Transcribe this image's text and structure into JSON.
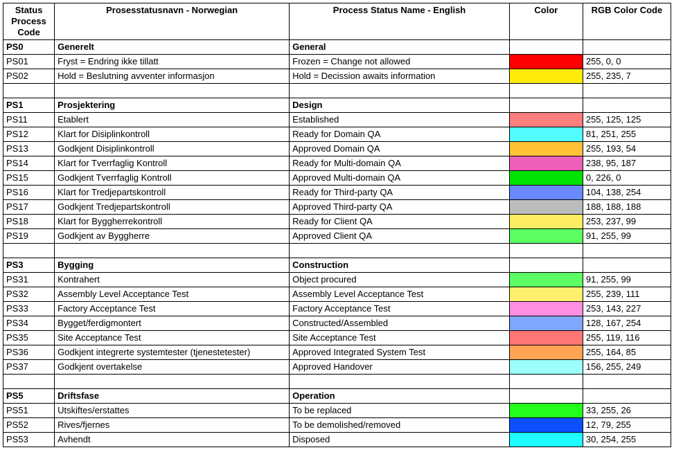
{
  "columns": [
    {
      "key": "code",
      "label": "Status Process Code"
    },
    {
      "key": "nor",
      "label": "Prosesstatusnavn - Norwegian"
    },
    {
      "key": "eng",
      "label": "Process Status Name  - English"
    },
    {
      "key": "color",
      "label": "Color"
    },
    {
      "key": "rgb",
      "label": "RGB Color Code"
    }
  ],
  "widths": {
    "code": 70,
    "nor": 320,
    "eng": 300,
    "color": 100,
    "rgb": 120
  },
  "font": {
    "family": "Arial",
    "size_pt": 10
  },
  "border_color": "#000000",
  "background_color": "#ffffff",
  "rows": [
    {
      "type": "section",
      "code": "PS0",
      "nor": "Generelt",
      "eng": "General"
    },
    {
      "type": "data",
      "code": "PS01",
      "nor": "Fryst = Endring ikke tillatt",
      "eng": "Frozen = Change not allowed",
      "color": "#ff0000",
      "rgb": "255, 0, 0"
    },
    {
      "type": "data",
      "code": "PS02",
      "nor": "Hold = Beslutning avventer informasjon",
      "eng": "Hold = Decission awaits information",
      "color": "#ffeb07",
      "rgb": "255, 235, 7"
    },
    {
      "type": "blank"
    },
    {
      "type": "section",
      "code": "PS1",
      "nor": "Prosjektering",
      "eng": "Design"
    },
    {
      "type": "data",
      "code": "PS11",
      "nor": "Etablert",
      "eng": "Established",
      "color": "#ff7d7d",
      "rgb": "255, 125, 125"
    },
    {
      "type": "data",
      "code": "PS12",
      "nor": "Klart for Disiplinkontroll",
      "eng": "Ready for Domain QA",
      "color": "#51fbff",
      "rgb": "81, 251, 255"
    },
    {
      "type": "data",
      "code": "PS13",
      "nor": "Godkjent Disiplinkontroll",
      "eng": "Approved Domain QA",
      "color": "#ffc136",
      "rgb": "255, 193, 54"
    },
    {
      "type": "data",
      "code": "PS14",
      "nor": "Klart for Tverrfaglig Kontroll",
      "eng": "Ready for Multi-domain QA",
      "color": "#ee5fbb",
      "rgb": "238, 95, 187"
    },
    {
      "type": "data",
      "code": "PS15",
      "nor": "Godkjent Tverrfaglig Kontroll",
      "eng": "Approved Multi-domain QA",
      "color": "#00e200",
      "rgb": "0, 226, 0"
    },
    {
      "type": "data",
      "code": "PS16",
      "nor": "Klart for Tredjepartskontroll",
      "eng": "Ready for Third-party QA",
      "color": "#688afe",
      "rgb": "104, 138, 254"
    },
    {
      "type": "data",
      "code": "PS17",
      "nor": "Godkjent Tredjepartskontroll",
      "eng": "Approved Third-party QA",
      "color": "#bcbcbc",
      "rgb": "188, 188, 188"
    },
    {
      "type": "data",
      "code": "PS18",
      "nor": "Klart for Byggherrekontroll",
      "eng": "Ready for Client QA",
      "color": "#fded63",
      "rgb": "253, 237, 99"
    },
    {
      "type": "data",
      "code": "PS19",
      "nor": "Godkjent av Byggherre",
      "eng": "Approved Client QA",
      "color": "#5bff63",
      "rgb": "91, 255, 99"
    },
    {
      "type": "blank"
    },
    {
      "type": "section",
      "code": "PS3",
      "nor": "Bygging",
      "eng": "Construction"
    },
    {
      "type": "data",
      "code": "PS31",
      "nor": "Kontrahert",
      "eng": "Object procured",
      "color": "#5bff63",
      "rgb": "91, 255, 99"
    },
    {
      "type": "data",
      "code": "PS32",
      "nor": "Assembly Level Acceptance Test",
      "eng": "Assembly Level Acceptance Test",
      "color": "#ffef6f",
      "rgb": "255, 239, 111"
    },
    {
      "type": "data",
      "code": "PS33",
      "nor": "Factory Acceptance Test",
      "eng": "Factory Acceptance Test",
      "color": "#fd8fe3",
      "rgb": "253, 143, 227"
    },
    {
      "type": "data",
      "code": "PS34",
      "nor": "Bygget/ferdigmontert",
      "eng": "Constructed/Assembled",
      "color": "#80a7fe",
      "rgb": "128, 167, 254"
    },
    {
      "type": "data",
      "code": "PS35",
      "nor": "Site Acceptance Test",
      "eng": "Site Acceptance Test",
      "color": "#ff7774",
      "rgb": "255, 119, 116"
    },
    {
      "type": "data",
      "code": "PS36",
      "nor": "Godkjent integrerte systemtester (tjenestetester)",
      "eng": "Approved Integrated System Test",
      "color": "#ffa455",
      "rgb": "255, 164, 85"
    },
    {
      "type": "data",
      "code": "PS37",
      "nor": "Godkjent overtakelse",
      "eng": "Approved Handover",
      "color": "#9cfff9",
      "rgb": "156, 255, 249"
    },
    {
      "type": "blank"
    },
    {
      "type": "section",
      "code": "PS5",
      "nor": "Driftsfase",
      "eng": "Operation"
    },
    {
      "type": "data",
      "code": "PS51",
      "nor": "Utskiftes/erstattes",
      "eng": "To be replaced",
      "color": "#21ff1a",
      "rgb": "33, 255, 26"
    },
    {
      "type": "data",
      "code": "PS52",
      "nor": "Rives/fjernes",
      "eng": "To be demolished/removed",
      "color": "#0c4fff",
      "rgb": "12, 79, 255"
    },
    {
      "type": "data",
      "code": "PS53",
      "nor": "Avhendt",
      "eng": "Disposed",
      "color": "#1efeff",
      "rgb": "30, 254, 255"
    }
  ]
}
